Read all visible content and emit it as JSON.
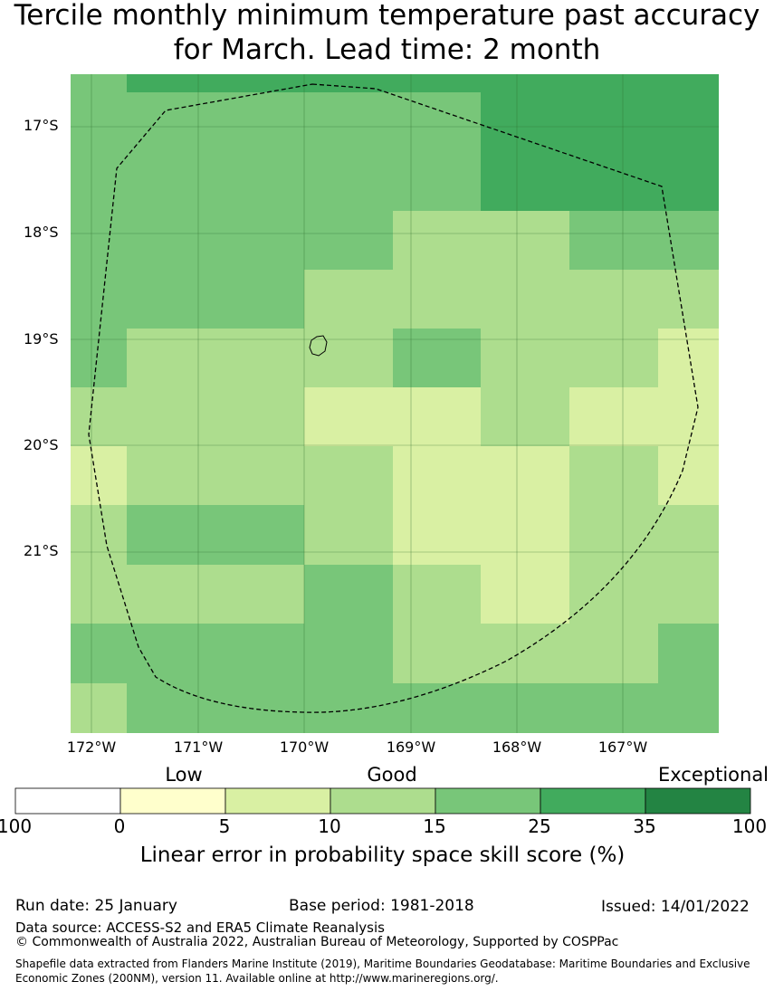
{
  "title": "Tercile monthly minimum temperature past accuracy for March. Lead time: 2 month",
  "map": {
    "lat_labels": [
      "17°S",
      "18°S",
      "19°S",
      "20°S",
      "21°S"
    ],
    "lon_labels": [
      "172°W",
      "171°W",
      "170°W",
      "169°W",
      "168°W",
      "167°W"
    ],
    "grid_values": [
      [
        25,
        35,
        35,
        35,
        35,
        35,
        35,
        35
      ],
      [
        25,
        25,
        25,
        25,
        25,
        35,
        35,
        35
      ],
      [
        25,
        25,
        25,
        25,
        15,
        15,
        25,
        25
      ],
      [
        25,
        25,
        25,
        15,
        15,
        15,
        15,
        15
      ],
      [
        25,
        15,
        15,
        15,
        25,
        15,
        15,
        10
      ],
      [
        15,
        15,
        15,
        10,
        10,
        15,
        10,
        10
      ],
      [
        10,
        15,
        15,
        15,
        10,
        10,
        15,
        10
      ],
      [
        15,
        25,
        25,
        15,
        10,
        10,
        15,
        15
      ],
      [
        15,
        15,
        15,
        25,
        15,
        10,
        15,
        15
      ],
      [
        25,
        25,
        25,
        25,
        15,
        15,
        15,
        25
      ],
      [
        15,
        25,
        25,
        25,
        25,
        25,
        25,
        25
      ]
    ]
  },
  "legend": {
    "categories": [
      "Low",
      "Good",
      "Exceptional"
    ],
    "ticks": [
      "100",
      "0",
      "5",
      "10",
      "15",
      "25",
      "35",
      "100"
    ],
    "colors": [
      "#ffffff",
      "#ffffcc",
      "#d9f0a3",
      "#addd8e",
      "#78c679",
      "#41ab5d",
      "#238443"
    ],
    "label": "Linear error in probability space skill score (%)"
  },
  "footer": {
    "run_date": "Run date: 25 January",
    "base_period": "Base period: 1981-2018",
    "issued": "Issued: 14/01/2022",
    "data_source": "Data source: ACCESS-S2 and ERA5 Climate Reanalysis",
    "copyright": "© Commonwealth of Australia 2022, Australian Bureau of Meteorology, Supported by COSPPac",
    "shapefile": "Shapefile data extracted from Flanders Marine Institute (2019), Maritime Boundaries Geodatabase: Maritime Boundaries and Exclusive Economic Zones (200NM), version 11. Available online at http://www.marineregions.org/."
  }
}
